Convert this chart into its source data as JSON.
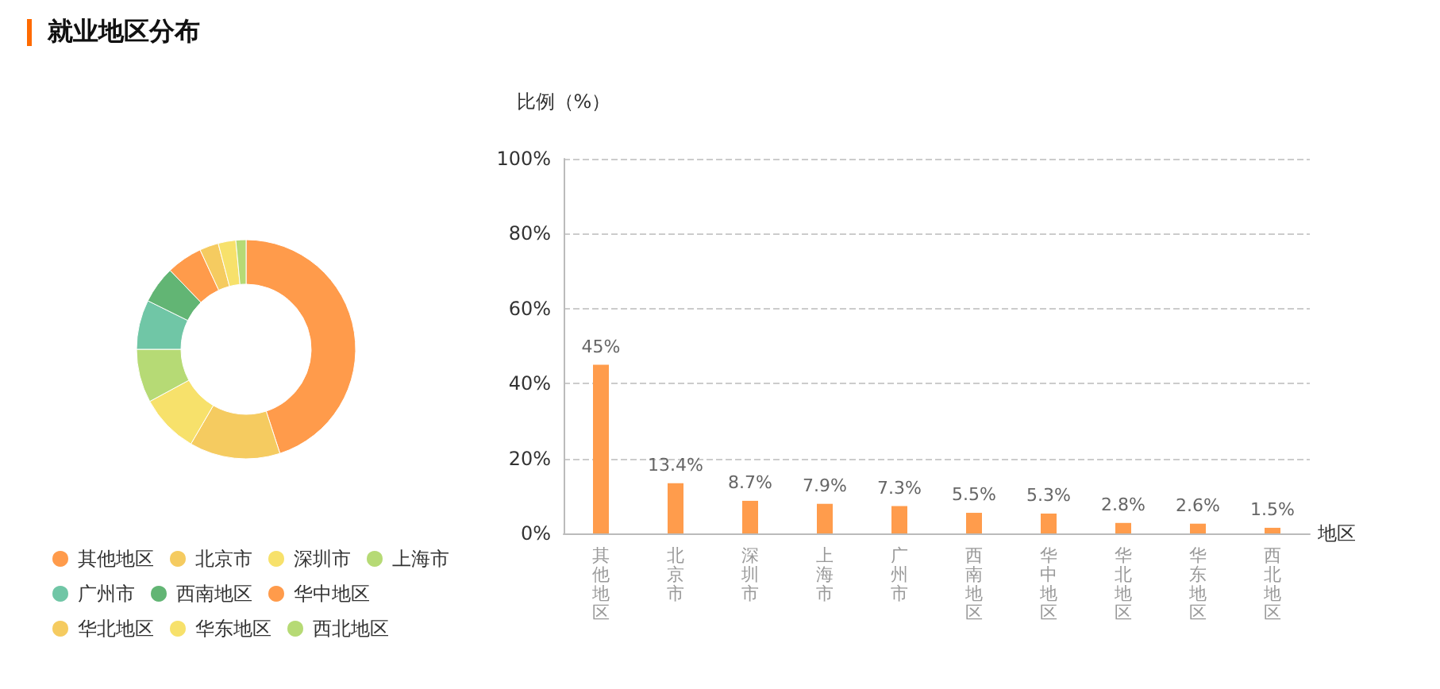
{
  "chart_data": [
    {
      "type": "donut",
      "title": "就业地区分布",
      "categories": [
        "其他地区",
        "北京市",
        "深圳市",
        "上海市",
        "广州市",
        "西南地区",
        "华中地区",
        "华北地区",
        "华东地区",
        "西北地区"
      ],
      "values": [
        45,
        13.4,
        8.7,
        7.9,
        7.3,
        5.5,
        5.3,
        2.8,
        2.6,
        1.5
      ],
      "colors": [
        "#ff9b4b",
        "#f5cb60",
        "#f7e16b",
        "#b6da75",
        "#70c6a6",
        "#62b574",
        "#ff9b4b",
        "#f5cb60",
        "#f7e16b",
        "#b6da75"
      ],
      "legend": "bottom"
    },
    {
      "type": "bar",
      "ylabel": "比例（%）",
      "xlabel": "地区",
      "categories": [
        "其他地区",
        "北京市",
        "深圳市",
        "上海市",
        "广州市",
        "西南地区",
        "华中地区",
        "华北地区",
        "华东地区",
        "西北地区"
      ],
      "values": [
        45,
        13.4,
        8.7,
        7.9,
        7.3,
        5.5,
        5.3,
        2.8,
        2.6,
        1.5
      ],
      "color": "#ff9c4c",
      "value_labels": [
        "45%",
        "13.4%",
        "8.7%",
        "7.9%",
        "7.3%",
        "5.5%",
        "5.3%",
        "2.8%",
        "2.6%",
        "1.5%"
      ],
      "ylim": [
        0,
        100
      ],
      "yticks": [
        {
          "value": 0,
          "label": "0%"
        },
        {
          "value": 20,
          "label": "20%"
        },
        {
          "value": 40,
          "label": "40%"
        },
        {
          "value": 60,
          "label": "60%"
        },
        {
          "value": 80,
          "label": "80%"
        },
        {
          "value": 100,
          "label": "100%"
        }
      ],
      "grid": "y"
    }
  ]
}
